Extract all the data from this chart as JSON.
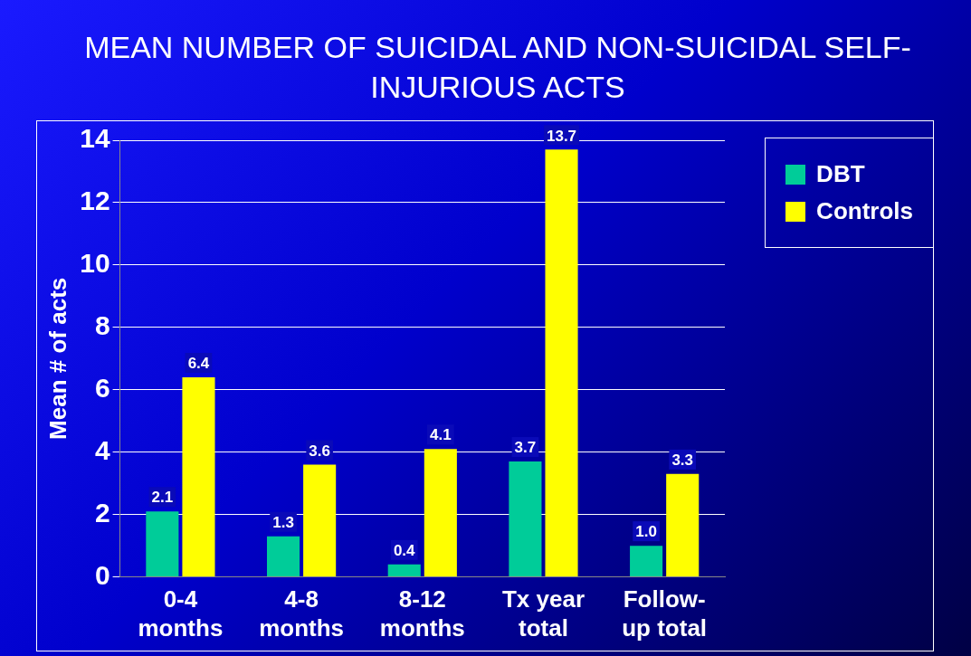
{
  "chart_data": {
    "type": "bar",
    "title": "MEAN NUMBER OF SUICIDAL AND NON-SUICIDAL SELF-INJURIOUS ACTS",
    "ylabel": "Mean # of acts",
    "categories": [
      "0-4\nmonths",
      "4-8\nmonths",
      "8-12\nmonths",
      "Tx year\ntotal",
      "Follow-\nup total"
    ],
    "series": [
      {
        "name": "DBT",
        "color": "#00cc99",
        "values": [
          2.1,
          1.3,
          0.4,
          3.7,
          1.0
        ],
        "value_labels": [
          "2.1",
          "1.3",
          "0.4",
          "3.7",
          "1.0"
        ]
      },
      {
        "name": "Controls",
        "color": "#ffff00",
        "values": [
          6.4,
          3.6,
          4.1,
          13.7,
          3.3
        ],
        "value_labels": [
          "6.4",
          "3.6",
          "4.1",
          "13.7",
          "3.3"
        ]
      }
    ],
    "ylim": [
      0,
      14
    ],
    "yticks": [
      0,
      2,
      4,
      6,
      8,
      10,
      12,
      14
    ],
    "grid": "y",
    "legend": "top right"
  }
}
